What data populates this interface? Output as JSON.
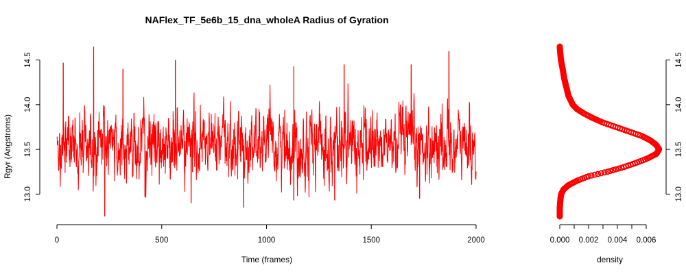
{
  "chart_data": [
    {
      "type": "line",
      "title": "NAFlex_TF_5e6b_15_dna_wholeA Radius of Gyration",
      "xlabel": "Time (frames)",
      "ylabel": "Rgyr (Angstroms)",
      "xlim": [
        0,
        2000
      ],
      "ylim": [
        12.75,
        14.65
      ],
      "x_ticks": [
        "0",
        "500",
        "1000",
        "1500",
        "2000"
      ],
      "y_ticks": [
        "13.0",
        "13.5",
        "14.0",
        "14.5"
      ],
      "series_color": "#ff0000",
      "series_summary": {
        "n_frames": 2000,
        "mean": 13.55,
        "min": 12.75,
        "max": 14.65,
        "x_at_min": 228,
        "x_at_max": 175
      },
      "notable_peaks": [
        {
          "x": 175,
          "y": 14.65
        },
        {
          "x": 1870,
          "y": 14.6
        },
        {
          "x": 565,
          "y": 14.5
        },
        {
          "x": 30,
          "y": 14.47
        },
        {
          "x": 1690,
          "y": 14.45
        },
        {
          "x": 1370,
          "y": 14.45
        },
        {
          "x": 1130,
          "y": 14.43
        },
        {
          "x": 315,
          "y": 14.4
        }
      ],
      "notable_troughs": [
        {
          "x": 228,
          "y": 12.75
        },
        {
          "x": 890,
          "y": 12.85
        },
        {
          "x": 1130,
          "y": 12.93
        },
        {
          "x": 1325,
          "y": 12.93
        },
        {
          "x": 1730,
          "y": 12.95
        },
        {
          "x": 640,
          "y": 12.9
        },
        {
          "x": 420,
          "y": 12.97
        }
      ],
      "grid": false,
      "legend": "none"
    },
    {
      "type": "line",
      "xlabel": "density",
      "xlim": [
        0,
        0.007
      ],
      "ylim": [
        12.75,
        14.65
      ],
      "x_ticks": [
        "0.000",
        "0.002",
        "0.004",
        "0.006"
      ],
      "y_ticks": [
        "13.0",
        "13.5",
        "14.0",
        "14.5"
      ],
      "y_axis_side": "right",
      "series_color": "#ff0000",
      "points": [
        {
          "rgyr": 12.75,
          "density": 0.0
        },
        {
          "rgyr": 12.85,
          "density": 0.0
        },
        {
          "rgyr": 12.95,
          "density": 5e-05
        },
        {
          "rgyr": 13.0,
          "density": 0.0001
        },
        {
          "rgyr": 13.05,
          "density": 0.00025
        },
        {
          "rgyr": 13.1,
          "density": 0.0006
        },
        {
          "rgyr": 13.15,
          "density": 0.0012
        },
        {
          "rgyr": 13.2,
          "density": 0.002
        },
        {
          "rgyr": 13.25,
          "density": 0.0033
        },
        {
          "rgyr": 13.3,
          "density": 0.0044
        },
        {
          "rgyr": 13.35,
          "density": 0.0053
        },
        {
          "rgyr": 13.4,
          "density": 0.0061
        },
        {
          "rgyr": 13.45,
          "density": 0.0067
        },
        {
          "rgyr": 13.5,
          "density": 0.0069
        },
        {
          "rgyr": 13.55,
          "density": 0.0067
        },
        {
          "rgyr": 13.6,
          "density": 0.0063
        },
        {
          "rgyr": 13.65,
          "density": 0.0057
        },
        {
          "rgyr": 13.7,
          "density": 0.0048
        },
        {
          "rgyr": 13.75,
          "density": 0.0039
        },
        {
          "rgyr": 13.8,
          "density": 0.003
        },
        {
          "rgyr": 13.85,
          "density": 0.0023
        },
        {
          "rgyr": 13.9,
          "density": 0.0017
        },
        {
          "rgyr": 13.95,
          "density": 0.0012
        },
        {
          "rgyr": 14.0,
          "density": 0.0009
        },
        {
          "rgyr": 14.1,
          "density": 0.0006
        },
        {
          "rgyr": 14.2,
          "density": 0.00045
        },
        {
          "rgyr": 14.3,
          "density": 0.0003
        },
        {
          "rgyr": 14.4,
          "density": 0.0002
        },
        {
          "rgyr": 14.5,
          "density": 8e-05
        },
        {
          "rgyr": 14.6,
          "density": 2e-05
        },
        {
          "rgyr": 14.65,
          "density": 0.0
        }
      ],
      "grid": false,
      "legend": "none"
    }
  ]
}
